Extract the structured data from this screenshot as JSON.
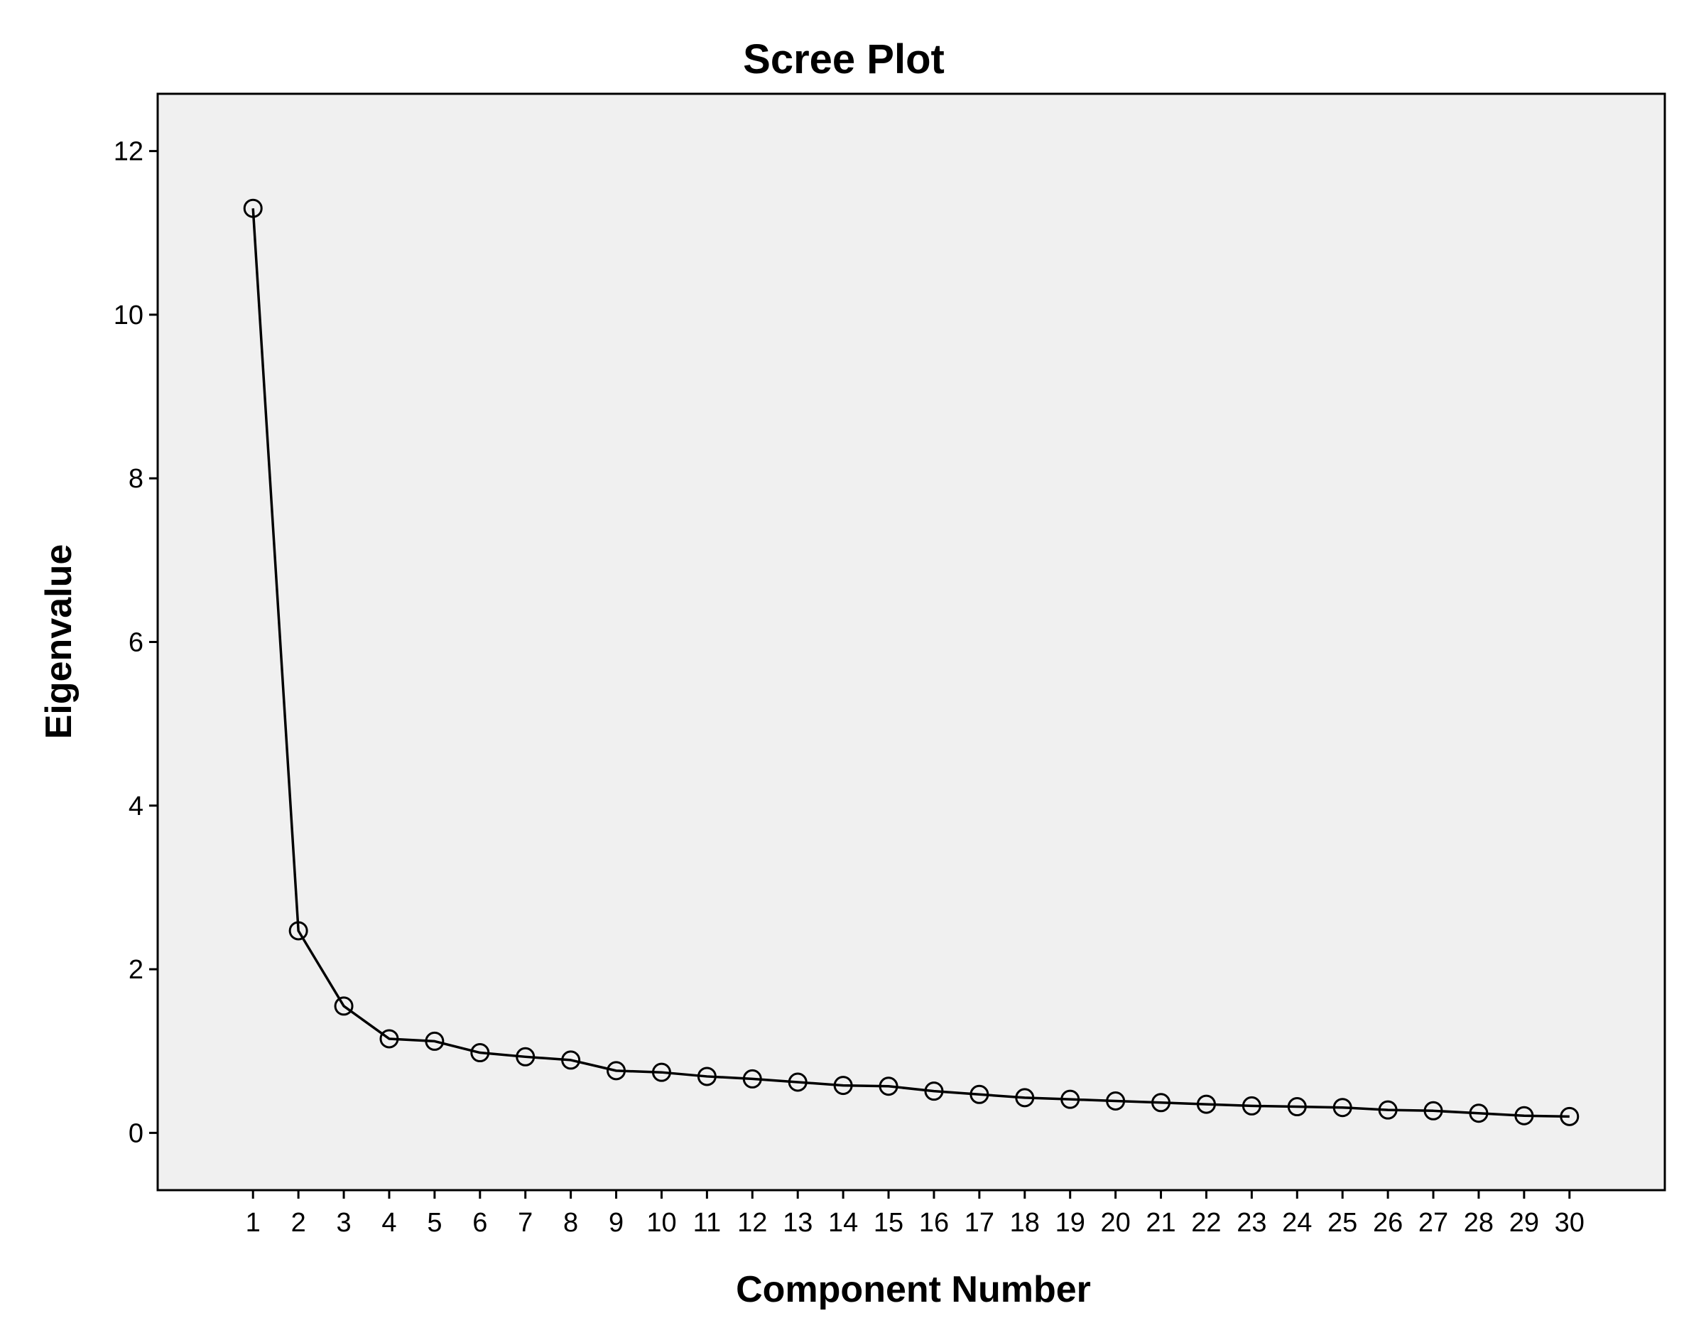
{
  "chart_data": {
    "type": "line",
    "title": "Scree Plot",
    "xlabel": "Component Number",
    "ylabel": "Eigenvalue",
    "x": [
      1,
      2,
      3,
      4,
      5,
      6,
      7,
      8,
      9,
      10,
      11,
      12,
      13,
      14,
      15,
      16,
      17,
      18,
      19,
      20,
      21,
      22,
      23,
      24,
      25,
      26,
      27,
      28,
      29,
      30
    ],
    "x_tick_labels": [
      "1",
      "2",
      "3",
      "4",
      "5",
      "6",
      "7",
      "8",
      "9",
      "10",
      "11",
      "12",
      "13",
      "14",
      "15",
      "16",
      "17",
      "18",
      "19",
      "20",
      "21",
      "22",
      "23",
      "24",
      "25",
      "26",
      "27",
      "28",
      "29",
      "30"
    ],
    "series": [
      {
        "values": [
          11.3,
          2.47,
          1.55,
          1.15,
          1.12,
          0.98,
          0.93,
          0.89,
          0.76,
          0.74,
          0.69,
          0.66,
          0.62,
          0.58,
          0.57,
          0.51,
          0.47,
          0.43,
          0.41,
          0.39,
          0.37,
          0.35,
          0.33,
          0.32,
          0.31,
          0.28,
          0.27,
          0.24,
          0.21,
          0.2
        ]
      }
    ],
    "ylim": [
      -0.7,
      12.7
    ],
    "xlim": [
      -1.1,
      32.1
    ],
    "y_ticks": [
      0,
      2,
      4,
      6,
      8,
      10,
      12
    ],
    "y_tick_labels": [
      "0",
      "2",
      "4",
      "6",
      "8",
      "10",
      "12"
    ],
    "grid": false,
    "marker": "open-circle",
    "colors": {
      "plot_background": "#f0f0f0",
      "line": "#000000",
      "frame": "#000000"
    }
  }
}
